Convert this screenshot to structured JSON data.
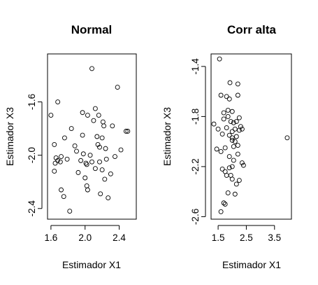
{
  "chart_data": [
    {
      "type": "scatter",
      "title": "Normal",
      "xlabel": "Estimador X1",
      "ylabel": "Estimador X3",
      "xlim": [
        1.56,
        2.6
      ],
      "ylim": [
        -2.48,
        -1.24
      ],
      "xticks": [
        1.6,
        2.0,
        2.4
      ],
      "xtick_labels": [
        "1.6",
        "2.0",
        "2.4"
      ],
      "yticks": [
        -2.4,
        -2.0,
        -1.6
      ],
      "ytick_labels": [
        "-2.4",
        "-2.0",
        "-1.6"
      ],
      "grid": false,
      "x": [
        2.08,
        2.38,
        1.68,
        1.6,
        1.64,
        2.12,
        1.97,
        2.03,
        2.16,
        2.1,
        2.21,
        2.22,
        2.32,
        2.48,
        2.5,
        1.84,
        1.76,
        1.97,
        1.88,
        2.14,
        2.2,
        2.15,
        2.17,
        2.24,
        1.9,
        1.98,
        2.06,
        1.72,
        1.66,
        1.68,
        1.71,
        1.65,
        1.64,
        1.79,
        2.01,
        2.08,
        2.17,
        2.25,
        2.35,
        2.42,
        1.95,
        2.02,
        2.12,
        2.2,
        2.3,
        1.92,
        2.0,
        2.23,
        1.72,
        1.75,
        2.02,
        2.03,
        2.18,
        1.82,
        2.27
      ],
      "y": [
        -1.35,
        -1.49,
        -1.6,
        -1.7,
        -1.92,
        -1.65,
        -1.68,
        -1.7,
        -1.7,
        -1.74,
        -1.75,
        -1.78,
        -1.78,
        -1.82,
        -1.82,
        -1.8,
        -1.87,
        -1.85,
        -1.93,
        -1.86,
        -1.87,
        -1.92,
        -1.94,
        -1.95,
        -1.97,
        -1.99,
        -2.0,
        -2.01,
        -2.02,
        -2.04,
        -2.05,
        -2.06,
        -2.12,
        -2.03,
        -2.06,
        -2.05,
        -2.05,
        -2.03,
        -2.01,
        -1.96,
        -2.04,
        -2.07,
        -2.1,
        -2.11,
        -2.14,
        -2.13,
        -2.17,
        -2.18,
        -2.26,
        -2.31,
        -2.23,
        -2.26,
        -2.29,
        -2.42,
        -2.32
      ]
    },
    {
      "type": "scatter",
      "title": "Corr alta",
      "xlabel": "Estimador X1",
      "ylabel": "Estimador X3",
      "xlim": [
        1.25,
        4.1
      ],
      "ylim": [
        -2.62,
        -1.3
      ],
      "xticks": [
        1.5,
        2.5,
        3.5
      ],
      "xtick_labels": [
        "1.5",
        "2.5",
        "3.5"
      ],
      "yticks": [
        -2.6,
        -2.2,
        -1.8,
        -1.4
      ],
      "ytick_labels": [
        "-2.6",
        "-2.2",
        "-1.8",
        "-1.4"
      ],
      "grid": false,
      "x": [
        1.55,
        1.92,
        2.2,
        1.6,
        1.8,
        2.2,
        1.9,
        1.85,
        1.7,
        2.0,
        1.85,
        2.25,
        1.7,
        1.95,
        2.05,
        2.15,
        2.3,
        1.35,
        1.5,
        1.8,
        2.0,
        2.1,
        2.25,
        1.65,
        1.9,
        2.0,
        2.15,
        2.35,
        2.0,
        2.1,
        2.2,
        3.95,
        1.45,
        1.75,
        2.05,
        2.2,
        1.6,
        1.9,
        2.05,
        2.4,
        2.35,
        1.65,
        1.75,
        2.0,
        1.8,
        1.95,
        2.0,
        2.25,
        1.9,
        1.85,
        2.1,
        1.7,
        1.75,
        1.6,
        2.15
      ],
      "y": [
        -1.34,
        -1.53,
        -1.54,
        -1.63,
        -1.64,
        -1.63,
        -1.66,
        -1.75,
        -1.77,
        -1.76,
        -1.8,
        -1.81,
        -1.82,
        -1.84,
        -1.85,
        -1.84,
        -1.88,
        -1.86,
        -1.9,
        -1.89,
        -1.92,
        -1.9,
        -1.91,
        -1.94,
        -1.95,
        -1.97,
        -1.96,
        -1.9,
        -1.99,
        -2.0,
        -2.03,
        -1.97,
        -2.06,
        -2.05,
        -2.04,
        -2.1,
        -2.08,
        -2.12,
        -2.15,
        -2.19,
        -2.17,
        -2.22,
        -2.24,
        -2.2,
        -2.27,
        -2.27,
        -2.3,
        -2.31,
        -2.21,
        -2.41,
        -2.42,
        -2.49,
        -2.5,
        -2.56,
        -2.34
      ]
    }
  ]
}
